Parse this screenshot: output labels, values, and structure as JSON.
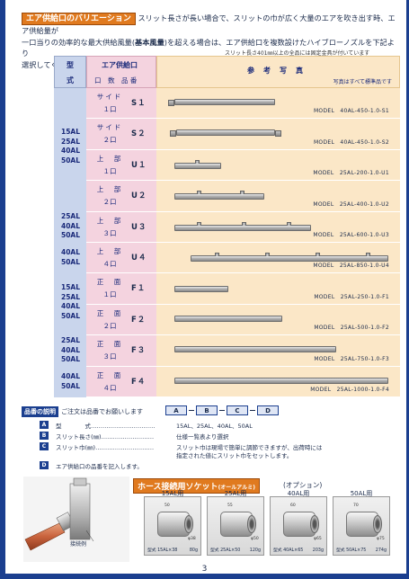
{
  "header": {
    "title": "エア供給口のバリエーション",
    "text_line1": "スリット長さが長い場合で、スリットの巾が広く大量のエアを吹き出す時、エア供給量が",
    "text_line2_pre": "一口当りの効率的な最大供給風量(",
    "text_line2_bold": "基本風量",
    "text_line2_post": ")を超える場合は、エア供給口を複数設けたハイブローノズルを下記より",
    "text_line3": "選択してください。",
    "fixed_note": "スリット長さ401㎜以上の全品には固定金具が付いています"
  },
  "table": {
    "head_type": "型",
    "head_type2": "式",
    "head_supply": "エア供給口",
    "head_supply_sub": "口　数　品 番",
    "head_photo": "参　考　写　真",
    "head_photo_note": "写真はすべて標準品です",
    "groups": [
      {
        "labels": [
          "15AL",
          "25AL",
          "40AL",
          "50AL"
        ]
      },
      {
        "labels": [
          "25AL",
          "40AL",
          "50AL"
        ]
      },
      {
        "labels": [
          "40AL",
          "50AL"
        ]
      },
      {
        "labels": [
          "15AL",
          "25AL",
          "40AL",
          "50AL"
        ]
      },
      {
        "labels": [
          "25AL",
          "40AL",
          "50AL"
        ]
      },
      {
        "labels": [
          "40AL",
          "50AL"
        ]
      }
    ],
    "rows": [
      {
        "name": "サイド",
        "num": "１口",
        "code": "S１",
        "model": "MODEL　40AL-450-1.0-S1"
      },
      {
        "name": "サイド",
        "num": "２口",
        "code": "S２",
        "model": "MODEL　40AL-450-1.0-S2"
      },
      {
        "name": "上　部",
        "num": "１口",
        "code": "U１",
        "model": "MODEL　25AL-200-1.0-U1"
      },
      {
        "name": "上　部",
        "num": "２口",
        "code": "U２",
        "model": "MODEL　25AL-400-1.0-U2"
      },
      {
        "name": "上　部",
        "num": "３口",
        "code": "U３",
        "model": "MODEL　25AL-600-1.0-U3"
      },
      {
        "name": "上　部",
        "num": "４口",
        "code": "U４",
        "model": "MODEL　25AL-850-1.0-U4"
      },
      {
        "name": "正　面",
        "num": "１口",
        "code": "F１",
        "model": "MODEL　25AL-250-1.0-F1"
      },
      {
        "name": "正　面",
        "num": "２口",
        "code": "F２",
        "model": "MODEL　25AL-500-1.0-F2"
      },
      {
        "name": "正　面",
        "num": "３口",
        "code": "F３",
        "model": "MODEL　25AL-750-1.0-F3"
      },
      {
        "name": "正　面",
        "num": "４口",
        "code": "F４",
        "model": "MODEL　25AL-1000-1.0-F4"
      }
    ]
  },
  "product_code": {
    "tag": "品番の説明",
    "text": "ご注文は品番でお願いします",
    "boxes": [
      "A",
      "B",
      "C",
      "D"
    ]
  },
  "legend": [
    {
      "key": "A",
      "label": "型　　　　式",
      "dots": "……………………………",
      "desc": "15AL、25AL、40AL、50AL"
    },
    {
      "key": "B",
      "label": "スリット長さ(㎜)",
      "dots": "………………………",
      "desc": "仕様一覧表より選択"
    },
    {
      "key": "C",
      "label": "スリット巾(㎜)",
      "dots": "…………………………",
      "desc": "スリット巾は現場で簡単に調節できますが、出荷時には"
    },
    {
      "key": "",
      "label": "",
      "dots": "",
      "desc": "指定された値にスリット巾をセットします。"
    },
    {
      "key": "D",
      "label": "エア供給口の品番を記入します。",
      "dots": "",
      "desc": ""
    }
  ],
  "hose": {
    "title": "ホース接続用ソケット",
    "title_sub": "(オールアルミ)",
    "option": "(オプション)",
    "example_label": "接続例",
    "sockets": [
      {
        "title": "15AL用",
        "dim_a": "50",
        "dim_b": "φ38",
        "model": "型式 15AL×38",
        "weight": "80g"
      },
      {
        "title": "25AL用",
        "dim_a": "55",
        "dim_b": "φ50",
        "model": "型式 25AL×50",
        "weight": "120g"
      },
      {
        "title": "40AL用",
        "dim_a": "60",
        "dim_b": "φ65",
        "model": "型式 40AL×65",
        "weight": "203g"
      },
      {
        "title": "50AL用",
        "dim_a": "70",
        "dim_b": "φ75",
        "model": "型式 50AL×75",
        "weight": "274g"
      }
    ]
  },
  "page_number": "3",
  "colors": {
    "accent": "#e07a1f",
    "navy": "#1b3f8f",
    "type_col": "#c9d5ec",
    "supply_col": "#f4d3df",
    "photo_col": "#fbe7c7"
  }
}
